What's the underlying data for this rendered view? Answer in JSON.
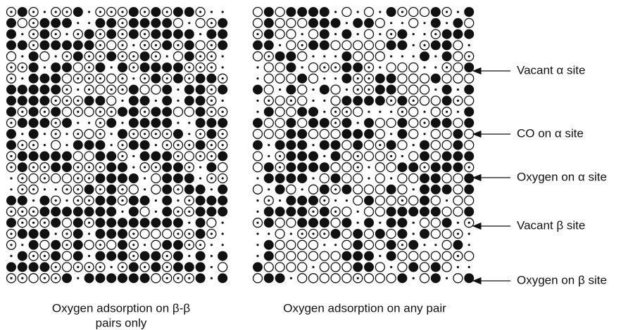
{
  "panels": [
    {
      "caption": [
        "Oxygen adsorption on β-β",
        "pairs only"
      ]
    },
    {
      "caption": [
        "Oxygen adsorption on any pair"
      ]
    }
  ],
  "legend": [
    "Vacant α site",
    "CO on α site",
    "Oxygen on α site",
    "Vacant β site",
    "Oxygen on β site"
  ]
}
